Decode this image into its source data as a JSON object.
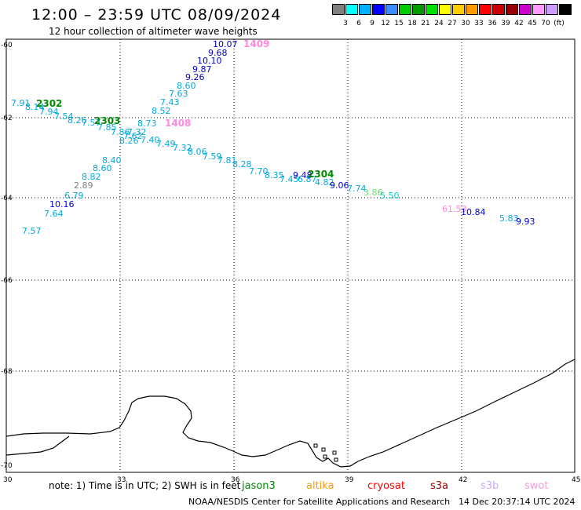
{
  "header": {
    "title": "12:00 – 23:59 UTC 08/09/2024",
    "subtitle": "12 hour collection of altimeter wave heights"
  },
  "legend": {
    "colors": [
      "#808080",
      "#00ffff",
      "#00b0ff",
      "#0000ff",
      "#3a8cff",
      "#00cc00",
      "#009900",
      "#00e000",
      "#ffff00",
      "#ffcc00",
      "#ff9900",
      "#ff0000",
      "#cc0000",
      "#990000",
      "#cc00cc",
      "#ff99ff",
      "#cc99ff",
      "#000000"
    ],
    "ticks": [
      "3",
      "6",
      "9",
      "12",
      "15",
      "18",
      "21",
      "24",
      "27",
      "30",
      "33",
      "36",
      "39",
      "42",
      "45",
      "70",
      "(ft)"
    ]
  },
  "axes": {
    "lat_labels": [
      "-60",
      "-62",
      "-64",
      "-66",
      "-68",
      "-70"
    ],
    "lon_labels": [
      "30",
      "33",
      "36",
      "39",
      "42",
      "45"
    ]
  },
  "observations": [
    {
      "text": "10.07",
      "color": "#0000cc"
    },
    {
      "text": "9.68",
      "color": "#0000cc"
    },
    {
      "text": "10.10",
      "color": "#0000cc"
    },
    {
      "text": "9.87",
      "color": "#0000cc"
    },
    {
      "text": "9.26",
      "color": "#0000cc"
    },
    {
      "text": "8.60",
      "color": "#00aadd"
    },
    {
      "text": "7.63",
      "color": "#00aadd"
    },
    {
      "text": "7.43",
      "color": "#00aadd"
    },
    {
      "text": "8.52",
      "color": "#00aadd"
    },
    {
      "text": "8.73",
      "color": "#00aadd"
    },
    {
      "text": "7.91",
      "color": "#00aadd"
    },
    {
      "text": "8.14",
      "color": "#00aadd"
    },
    {
      "text": "7.94",
      "color": "#00aadd"
    },
    {
      "text": "7.54",
      "color": "#00aadd"
    },
    {
      "text": "8.26",
      "color": "#00aadd"
    },
    {
      "text": "7.57",
      "color": "#00aadd"
    },
    {
      "text": "7.85",
      "color": "#00aadd"
    },
    {
      "text": "7.86",
      "color": "#00aadd"
    },
    {
      "text": "7.32",
      "color": "#00aadd"
    },
    {
      "text": "7.62",
      "color": "#00aadd"
    },
    {
      "text": "8.26",
      "color": "#00aadd"
    },
    {
      "text": "7.40",
      "color": "#00aadd"
    },
    {
      "text": "7.49",
      "color": "#00aadd"
    },
    {
      "text": "7.32",
      "color": "#00aadd"
    },
    {
      "text": "8.06",
      "color": "#00aadd"
    },
    {
      "text": "7.59",
      "color": "#00aadd"
    },
    {
      "text": "7.81",
      "color": "#00aadd"
    },
    {
      "text": "8.28",
      "color": "#00aadd"
    },
    {
      "text": "7.70",
      "color": "#00aadd"
    },
    {
      "text": "8.35",
      "color": "#00aadd"
    },
    {
      "text": "7.45",
      "color": "#00aadd"
    },
    {
      "text": "9.48",
      "color": "#0000cc"
    },
    {
      "text": "6.87",
      "color": "#00aadd"
    },
    {
      "text": "4.82",
      "color": "#00aadd"
    },
    {
      "text": "9.06",
      "color": "#0000cc"
    },
    {
      "text": "7.74",
      "color": "#00aadd"
    },
    {
      "text": "3.86",
      "color": "#66dd66"
    },
    {
      "text": "5.50",
      "color": "#00cccc"
    },
    {
      "text": "8.40",
      "color": "#00aadd"
    },
    {
      "text": "8.60",
      "color": "#00aadd"
    },
    {
      "text": "8.82",
      "color": "#00aadd"
    },
    {
      "text": "2.89",
      "color": "#808080"
    },
    {
      "text": "6.79",
      "color": "#00aadd"
    },
    {
      "text": "10.16",
      "color": "#0000cc"
    },
    {
      "text": "7.64",
      "color": "#00aadd"
    },
    {
      "text": "7.57",
      "color": "#00aadd"
    },
    {
      "text": "61.53",
      "color": "#ff88dd"
    },
    {
      "text": "10.84",
      "color": "#0000cc"
    },
    {
      "text": "5.83",
      "color": "#00aadd"
    },
    {
      "text": "9.93",
      "color": "#0000cc"
    }
  ],
  "time_marks": [
    {
      "text": "1409",
      "color": "#ff88dd"
    },
    {
      "text": "2302",
      "color": "#008800"
    },
    {
      "text": "2303",
      "color": "#008800"
    },
    {
      "text": "1408",
      "color": "#ff88dd"
    },
    {
      "text": "2304",
      "color": "#008800"
    }
  ],
  "footer": {
    "note": "note: 1) Time is in UTC; 2) SWH is in feet",
    "satellites": [
      {
        "name": "jason3",
        "color": "#008800"
      },
      {
        "name": "altika",
        "color": "#ff9900"
      },
      {
        "name": "cryosat",
        "color": "#ff0000"
      },
      {
        "name": "s3a",
        "color": "#990000"
      },
      {
        "name": "s3b",
        "color": "#ccaaff"
      },
      {
        "name": "swot",
        "color": "#ff99dd"
      }
    ],
    "credit": "NOAA/NESDIS Center for Satellite Applications and Research",
    "stamp": "14 Dec 20:37:14 UTC 2024"
  }
}
